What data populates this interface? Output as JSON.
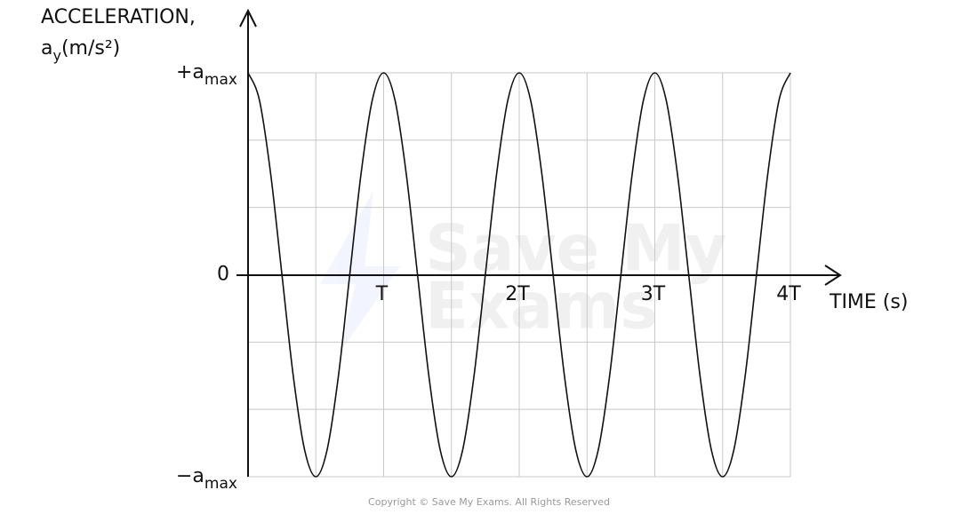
{
  "chart_data": {
    "type": "line",
    "ylabel": {
      "line1": "ACCELERATION,",
      "base": "a",
      "sub": "y",
      "rest": "(m/s²)"
    },
    "xlabel": "TIME (s)",
    "footer": "Copyright © Save My Exams. All Rights Reserved",
    "watermark": [
      "Save My",
      "Exams"
    ],
    "xlim": [
      0,
      4
    ],
    "ylim": [
      -1,
      1
    ],
    "xticks": [
      {
        "value": 1,
        "label": "T"
      },
      {
        "value": 2,
        "label": "2T"
      },
      {
        "value": 3,
        "label": "3T"
      },
      {
        "value": 4,
        "label": "4T"
      }
    ],
    "yticks": [
      {
        "value": 1,
        "label": {
          "base": "+a",
          "sub": "max"
        }
      },
      0,
      {
        "value": -1,
        "label": {
          "base": "−a",
          "sub": "max"
        }
      }
    ],
    "xgrid": [
      0,
      0.5,
      1,
      1.5,
      2,
      2.5,
      3,
      3.5,
      4
    ],
    "ygrid": [
      -1,
      -0.6667,
      -0.3333,
      0,
      0.3333,
      0.6667,
      1
    ],
    "grid": true,
    "series": [
      {
        "color": "#111111",
        "x": [
          0,
          0.0833,
          0.1667,
          0.25,
          0.3333,
          0.4167,
          0.5,
          0.5833,
          0.6667,
          0.75,
          0.8333,
          0.9167,
          1,
          1.0833,
          1.1667,
          1.25,
          1.3333,
          1.4167,
          1.5,
          1.5833,
          1.6667,
          1.75,
          1.8333,
          1.9167,
          2,
          2.0833,
          2.1667,
          2.25,
          2.3333,
          2.4167,
          2.5,
          2.5833,
          2.6667,
          2.75,
          2.8333,
          2.9167,
          3,
          3.0833,
          3.1667,
          3.25,
          3.3333,
          3.4167,
          3.5,
          3.5833,
          3.6667,
          3.75,
          3.8333,
          3.9167,
          4
        ],
        "values": [
          1,
          0.866,
          0.5,
          0,
          -0.5,
          -0.866,
          -1,
          -0.866,
          -0.5,
          0,
          0.5,
          0.866,
          1,
          0.866,
          0.5,
          0,
          -0.5,
          -0.866,
          -1,
          -0.866,
          -0.5,
          0,
          0.5,
          0.866,
          1,
          0.866,
          0.5,
          0,
          -0.5,
          -0.866,
          -1,
          -0.866,
          -0.5,
          0,
          0.5,
          0.866,
          1,
          0.866,
          0.5,
          0,
          -0.5,
          -0.866,
          -1,
          -0.866,
          -0.5,
          0,
          0.5,
          0.866,
          1
        ]
      }
    ]
  }
}
